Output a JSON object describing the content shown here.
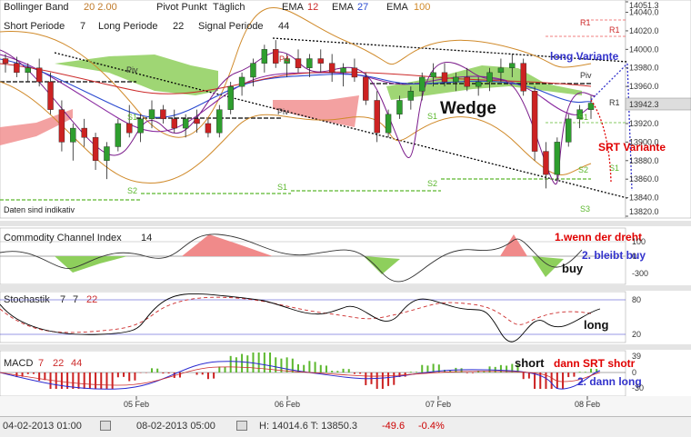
{
  "header_row1": {
    "bollinger": "Bollinger Band",
    "bollinger_params": "20 2.00",
    "pivot": "Pivot Punkt",
    "pivot_mode": "Täglich",
    "ema1_label": "EMA",
    "ema1_val": "12",
    "ema2_label": "EMA",
    "ema2_val": "27",
    "ema3_label": "EMA",
    "ema3_val": "100"
  },
  "header_row2": {
    "short": "Short Periode",
    "short_val": "7",
    "long": "Long Periode",
    "long_val": "22",
    "signal": "Signal Periode",
    "signal_val": "44"
  },
  "annotations": {
    "wedge": "Wedge",
    "long_variante": "long Variante",
    "srt_variante": "SRT Variante",
    "cci_note1": "1.wenn der dreht",
    "cci_note2": "2. bleibt buy",
    "buy": "buy",
    "long": "long",
    "short": "short",
    "macd_note1": "dann SRT shotr",
    "macd_note2": "2. dann long",
    "daten": "Daten sind indikativ"
  },
  "pivot_labels": {
    "r1": "R1",
    "r1b": "R1",
    "piv": "Piv",
    "piv2": "Piv",
    "piv3": "Piv",
    "s1a": "S1",
    "s1b": "S1",
    "s1c": "S1",
    "s1d": "S1",
    "s1e": "S1",
    "s2a": "S2",
    "s2b": "S2",
    "s2c": "S2",
    "s3": "S3",
    "r1c": "R1",
    "p4": "P4"
  },
  "price_axis": {
    "ticks": [
      "14051.3",
      "14040.0",
      "14020.0",
      "14000.0",
      "13980.0",
      "13960.0",
      "13942.3",
      "13920.0",
      "13900.0",
      "13880.0",
      "13860.0",
      "13840.0",
      "13820.0"
    ],
    "current": "13942.3"
  },
  "x_axis": {
    "labels": [
      "05 Feb",
      "06 Feb",
      "07 Feb",
      "08 Feb"
    ]
  },
  "cci": {
    "title": "Commodity Channel Index",
    "period": "14",
    "ticks": [
      "100",
      "0",
      "-300"
    ]
  },
  "stoch": {
    "title": "Stochastik",
    "p1": "7",
    "p2": "7",
    "p3": "22",
    "ticks": [
      "80",
      "20"
    ]
  },
  "macd": {
    "title": "MACD",
    "p1": "7",
    "p2": "22",
    "p3": "44",
    "ticks": [
      "39",
      "0",
      "-30"
    ]
  },
  "footer": {
    "from": "04-02-2013 01:00",
    "to": "08-02-2013 05:00",
    "hl": "H: 14014.6  T: 13850.3",
    "change": "-49.6",
    "pct": "-0.4%"
  },
  "colors": {
    "up": "#2e9e2e",
    "down": "#cc2222",
    "ichimoku_green": "#8ecf5c",
    "ichimoku_red": "#f08a8a",
    "blue_note": "#3333cc",
    "red_note": "#e00000"
  },
  "chart_data": {
    "type": "candlestick",
    "y_range": [
      13820,
      14051.3
    ],
    "current_price": 13942.3,
    "session_labels": [
      "05 Feb",
      "06 Feb",
      "07 Feb",
      "08 Feb"
    ],
    "candles": [
      [
        13990,
        13995,
        13975,
        13985
      ],
      [
        13985,
        13992,
        13970,
        13975
      ],
      [
        13975,
        13985,
        13965,
        13980
      ],
      [
        13980,
        13990,
        13960,
        13965
      ],
      [
        13965,
        13975,
        13930,
        13935
      ],
      [
        13935,
        13945,
        13890,
        13900
      ],
      [
        13900,
        13920,
        13880,
        13915
      ],
      [
        13915,
        13925,
        13895,
        13905
      ],
      [
        13905,
        13910,
        13870,
        13880
      ],
      [
        13880,
        13900,
        13860,
        13895
      ],
      [
        13895,
        13925,
        13890,
        13920
      ],
      [
        13920,
        13940,
        13905,
        13910
      ],
      [
        13910,
        13930,
        13900,
        13925
      ],
      [
        13925,
        13945,
        13915,
        13935
      ],
      [
        13935,
        13940,
        13920,
        13925
      ],
      [
        13925,
        13935,
        13910,
        13915
      ],
      [
        13915,
        13930,
        13905,
        13925
      ],
      [
        13925,
        13935,
        13910,
        13920
      ],
      [
        13920,
        13925,
        13905,
        13910
      ],
      [
        13910,
        13940,
        13905,
        13935
      ],
      [
        13935,
        13965,
        13930,
        13960
      ],
      [
        13960,
        13975,
        13950,
        13970
      ],
      [
        13970,
        13990,
        13960,
        13985
      ],
      [
        13985,
        14005,
        13975,
        14000
      ],
      [
        14000,
        14010,
        13980,
        13985
      ],
      [
        13985,
        13995,
        13970,
        13990
      ],
      [
        13990,
        14000,
        13975,
        13980
      ],
      [
        13980,
        13995,
        13970,
        13990
      ],
      [
        13990,
        14000,
        13975,
        13985
      ],
      [
        13985,
        13995,
        13965,
        13975
      ],
      [
        13975,
        13985,
        13960,
        13980
      ],
      [
        13980,
        13990,
        13965,
        13970
      ],
      [
        13970,
        13975,
        13940,
        13945
      ],
      [
        13945,
        13955,
        13900,
        13910
      ],
      [
        13910,
        13935,
        13905,
        13930
      ],
      [
        13930,
        13950,
        13925,
        13945
      ],
      [
        13945,
        13960,
        13935,
        13955
      ],
      [
        13955,
        13975,
        13945,
        13970
      ],
      [
        13970,
        13985,
        13960,
        13975
      ],
      [
        13975,
        13985,
        13960,
        13965
      ],
      [
        13965,
        13975,
        13955,
        13970
      ],
      [
        13970,
        13980,
        13955,
        13960
      ],
      [
        13960,
        13970,
        13950,
        13965
      ],
      [
        13965,
        13980,
        13955,
        13975
      ],
      [
        13975,
        13990,
        13965,
        13980
      ],
      [
        13980,
        13995,
        13970,
        13985
      ],
      [
        13985,
        13990,
        13950,
        13955
      ],
      [
        13955,
        13960,
        13880,
        13890
      ],
      [
        13890,
        13900,
        13850,
        13865
      ],
      [
        13865,
        13905,
        13860,
        13900
      ],
      [
        13900,
        13930,
        13895,
        13925
      ],
      [
        13925,
        13940,
        13915,
        13935
      ],
      [
        13935,
        13950,
        13925,
        13942
      ]
    ]
  }
}
